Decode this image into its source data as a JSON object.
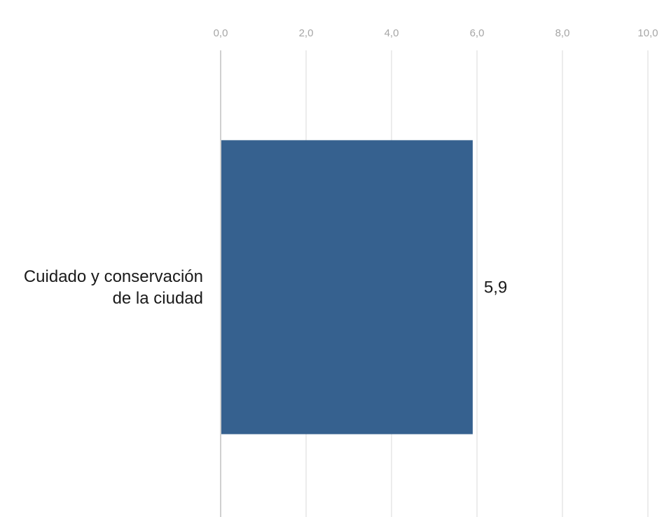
{
  "chart_data": {
    "type": "bar",
    "orientation": "horizontal",
    "categories": [
      [
        "Cuidado y conservación",
        "de la ciudad"
      ]
    ],
    "values": [
      5.9
    ],
    "value_labels": [
      "5,9"
    ],
    "x_ticks": [
      "0,0",
      "2,0",
      "4,0",
      "6,0",
      "8,0",
      "10,0"
    ],
    "xlim": [
      0,
      10
    ],
    "axis_position": "top",
    "grid": true,
    "legend": "none",
    "colors": {
      "bar": "#36618f",
      "grid": "#ececec",
      "axis": "#d0d0d0",
      "tick": "#a6a6a6"
    }
  }
}
